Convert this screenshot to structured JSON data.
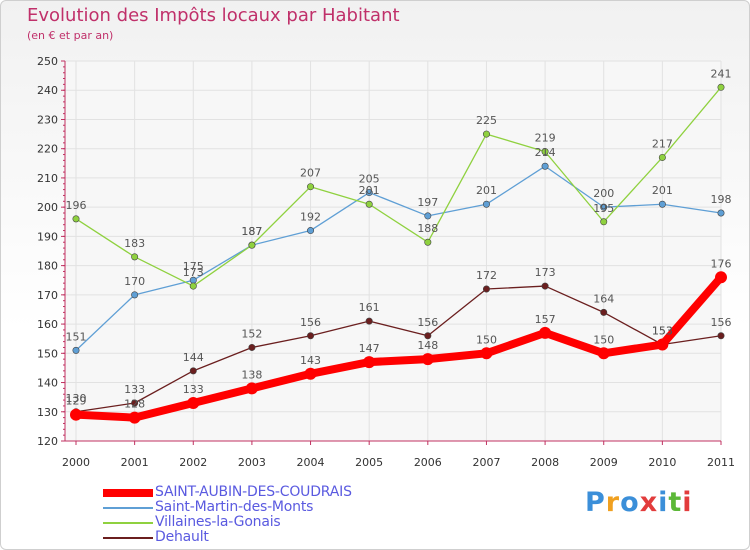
{
  "chart_data": {
    "type": "line",
    "title": "Evolution des Impôts locaux par Habitant",
    "subtitle": "(en € et par an)",
    "x": [
      "2000",
      "2001",
      "2002",
      "2003",
      "2004",
      "2005",
      "2006",
      "2007",
      "2008",
      "2009",
      "2010",
      "2011"
    ],
    "ylim": [
      120,
      250
    ],
    "yticks": [
      120,
      130,
      140,
      150,
      160,
      170,
      180,
      190,
      200,
      210,
      220,
      230,
      240,
      250
    ],
    "grid": true,
    "legend_position": "bottom-left",
    "series": [
      {
        "name": "SAINT-AUBIN-DES-COUDRAIS",
        "color": "#ff0000",
        "values": [
          129,
          128,
          133,
          138,
          143,
          147,
          148,
          150,
          157,
          150,
          153,
          176
        ]
      },
      {
        "name": "Saint-Martin-des-Monts",
        "color": "#5f9fd5",
        "values": [
          151,
          170,
          175,
          187,
          192,
          205,
          197,
          201,
          214,
          200,
          201,
          198
        ]
      },
      {
        "name": "Villaines-la-Gonais",
        "color": "#8fd13f",
        "values": [
          196,
          183,
          173,
          187,
          207,
          201,
          188,
          225,
          219,
          195,
          217,
          241
        ]
      },
      {
        "name": "Dehault",
        "color": "#6b1f1f",
        "values": [
          130,
          133,
          144,
          152,
          156,
          161,
          156,
          172,
          173,
          164,
          153,
          156
        ]
      }
    ]
  },
  "brand": {
    "text": "Proxiti",
    "colors": [
      "#3b8fd9",
      "#f0a020",
      "#3b8fd9",
      "#e23c3c",
      "#3b8fd9",
      "#5cb838",
      "#e23c3c"
    ]
  }
}
